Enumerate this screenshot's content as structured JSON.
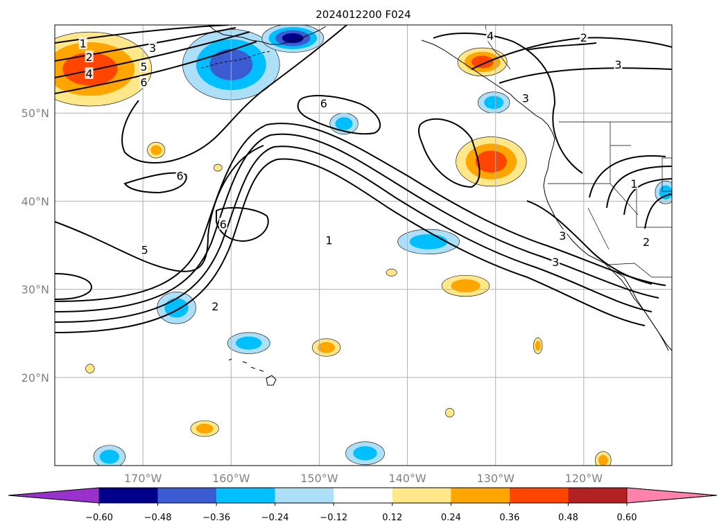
{
  "title": "2024012200 F024",
  "colors": {
    "neg_060": "#9932CC",
    "neg_048": "#00008B",
    "neg_036": "#3A5BD1",
    "neg_024": "#00BFFF",
    "neg_012": "#ADE0F8",
    "neutral": "#FFFFFF",
    "pos_012": "#FFE78A",
    "pos_024": "#FFA500",
    "pos_036": "#FF4500",
    "pos_048": "#B22222",
    "pos_060": "#FF82AB",
    "contour": "#000000",
    "grid": "#B0B0B0"
  },
  "map": {
    "lon_range": [
      -180,
      -110
    ],
    "lat_range": [
      10,
      60
    ],
    "lon_ticks": [
      {
        "value": -170,
        "label": "170°W"
      },
      {
        "value": -160,
        "label": "160°W"
      },
      {
        "value": -150,
        "label": "150°W"
      },
      {
        "value": -140,
        "label": "140°W"
      },
      {
        "value": -130,
        "label": "130°W"
      },
      {
        "value": -120,
        "label": "120°W"
      }
    ],
    "lat_ticks": [
      {
        "value": 20,
        "label": "20°N"
      },
      {
        "value": 30,
        "label": "30°N"
      },
      {
        "value": 40,
        "label": "40°N"
      },
      {
        "value": 50,
        "label": "50°N"
      }
    ],
    "contour_labels": [
      {
        "text": "1",
        "lon": -176.8,
        "lat": 57.9
      },
      {
        "text": "2",
        "lon": -176.1,
        "lat": 56.4
      },
      {
        "text": "3",
        "lon": -168.9,
        "lat": 57.4
      },
      {
        "text": "4",
        "lon": -176.1,
        "lat": 54.5
      },
      {
        "text": "5",
        "lon": -169.9,
        "lat": 55.3
      },
      {
        "text": "6",
        "lon": -169.9,
        "lat": 53.5
      },
      {
        "text": "6",
        "lon": -149.5,
        "lat": 51.1
      },
      {
        "text": "6",
        "lon": -165.8,
        "lat": 42.9
      },
      {
        "text": "6",
        "lon": -160.9,
        "lat": 37.4
      },
      {
        "text": "5",
        "lon": -169.8,
        "lat": 34.5
      },
      {
        "text": "2",
        "lon": -161.8,
        "lat": 28.1
      },
      {
        "text": "1",
        "lon": -148.9,
        "lat": 35.6
      },
      {
        "text": "4",
        "lon": -130.6,
        "lat": 58.8
      },
      {
        "text": "2",
        "lon": -120.0,
        "lat": 58.6
      },
      {
        "text": "3",
        "lon": -116.1,
        "lat": 55.5
      },
      {
        "text": "3",
        "lon": -126.6,
        "lat": 51.7
      },
      {
        "text": "3",
        "lon": -122.4,
        "lat": 36.1
      },
      {
        "text": "3",
        "lon": -123.2,
        "lat": 33.1
      },
      {
        "text": "1",
        "lon": -114.3,
        "lat": 42.0
      },
      {
        "text": "2",
        "lon": -112.9,
        "lat": 35.4
      }
    ],
    "features": [
      {
        "lon": -176,
        "lat": 55,
        "rx": 7.0,
        "ry": 4.2,
        "v": 0.36
      },
      {
        "lon": -160,
        "lat": 55.5,
        "rx": 5.5,
        "ry": 4.0,
        "v": -0.36
      },
      {
        "lon": -153,
        "lat": 58.5,
        "rx": 3.5,
        "ry": 1.6,
        "v": -0.48
      },
      {
        "lon": -131.5,
        "lat": 55.8,
        "rx": 2.8,
        "ry": 1.6,
        "v": 0.36
      },
      {
        "lon": -130.2,
        "lat": 51.2,
        "rx": 1.8,
        "ry": 1.2,
        "v": -0.24
      },
      {
        "lon": -147.2,
        "lat": 48.8,
        "rx": 1.6,
        "ry": 1.2,
        "v": -0.24
      },
      {
        "lon": -130.5,
        "lat": 44.5,
        "rx": 4.0,
        "ry": 2.8,
        "v": 0.36
      },
      {
        "lon": -161.5,
        "lat": 43.8,
        "rx": 0.0,
        "ry": 0.0,
        "v": 0.12
      },
      {
        "lon": -168.5,
        "lat": 45.8,
        "rx": 1.0,
        "ry": 0.9,
        "v": 0.24
      },
      {
        "lon": -166.2,
        "lat": 27.9,
        "rx": 2.2,
        "ry": 1.8,
        "v": -0.24
      },
      {
        "lon": -137.6,
        "lat": 35.4,
        "rx": 3.5,
        "ry": 1.4,
        "v": -0.24
      },
      {
        "lon": -133.4,
        "lat": 30.4,
        "rx": 2.7,
        "ry": 1.2,
        "v": 0.24
      },
      {
        "lon": -158.0,
        "lat": 23.9,
        "rx": 2.4,
        "ry": 1.2,
        "v": -0.24
      },
      {
        "lon": -149.2,
        "lat": 23.4,
        "rx": 1.6,
        "ry": 1.0,
        "v": 0.24
      },
      {
        "lon": -125.2,
        "lat": 23.6,
        "rx": 0.5,
        "ry": 0.9,
        "v": 0.24
      },
      {
        "lon": -141.8,
        "lat": 31.9,
        "rx": 0.6,
        "ry": 0.4,
        "v": 0.12
      },
      {
        "lon": -176.0,
        "lat": 21.0,
        "rx": 0.5,
        "ry": 0.5,
        "v": 0.12
      },
      {
        "lon": -144.8,
        "lat": 11.4,
        "rx": 2.2,
        "ry": 1.3,
        "v": -0.24
      },
      {
        "lon": -163.0,
        "lat": 14.2,
        "rx": 1.6,
        "ry": 0.9,
        "v": 0.24
      },
      {
        "lon": -173.8,
        "lat": 11.0,
        "rx": 1.8,
        "ry": 1.3,
        "v": -0.24
      },
      {
        "lon": -135.2,
        "lat": 16.0,
        "rx": 0.5,
        "ry": 0.5,
        "v": 0.12
      },
      {
        "lon": -110.7,
        "lat": 41.0,
        "rx": 1.2,
        "ry": 1.3,
        "v": -0.24
      },
      {
        "lon": -117.8,
        "lat": 10.6,
        "rx": 0.9,
        "ry": 1.0,
        "v": 0.24
      }
    ]
  },
  "colorbar": {
    "tick_values": [
      -0.6,
      -0.48,
      -0.36,
      -0.24,
      -0.12,
      0.12,
      0.24,
      0.36,
      0.48,
      0.6
    ],
    "tick_labels": [
      "−0.60",
      "−0.48",
      "−0.36",
      "−0.24",
      "−0.12",
      "0.12",
      "0.24",
      "0.36",
      "0.48",
      "0.60"
    ],
    "extend": "both"
  }
}
